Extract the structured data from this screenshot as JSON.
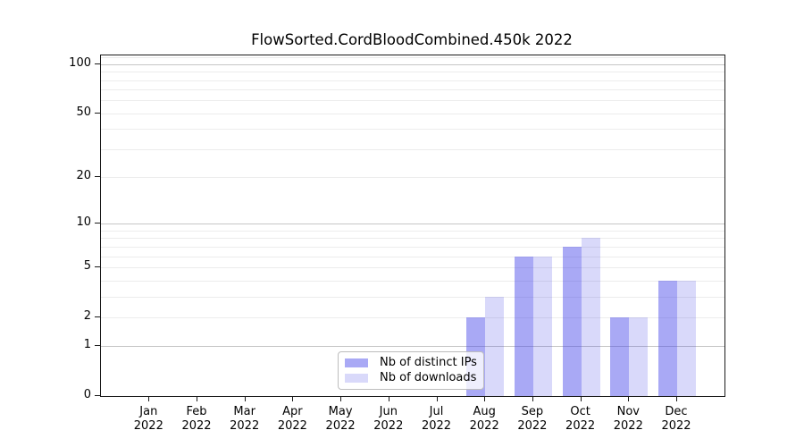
{
  "chart_data": {
    "type": "bar",
    "title": "FlowSorted.CordBloodCombined.450k 2022",
    "categories": [
      {
        "month": "Jan",
        "year": "2022"
      },
      {
        "month": "Feb",
        "year": "2022"
      },
      {
        "month": "Mar",
        "year": "2022"
      },
      {
        "month": "Apr",
        "year": "2022"
      },
      {
        "month": "May",
        "year": "2022"
      },
      {
        "month": "Jun",
        "year": "2022"
      },
      {
        "month": "Jul",
        "year": "2022"
      },
      {
        "month": "Aug",
        "year": "2022"
      },
      {
        "month": "Sep",
        "year": "2022"
      },
      {
        "month": "Oct",
        "year": "2022"
      },
      {
        "month": "Nov",
        "year": "2022"
      },
      {
        "month": "Dec",
        "year": "2022"
      }
    ],
    "series": [
      {
        "name": "Nb of distinct IPs",
        "color": "rgba(64,64,232,0.45)",
        "values": [
          0,
          0,
          0,
          0,
          0,
          0,
          0,
          2,
          6,
          7,
          2,
          4
        ]
      },
      {
        "name": "Nb of downloads",
        "color": "rgba(64,64,232,0.20)",
        "values": [
          0,
          0,
          0,
          0,
          0,
          0,
          0,
          3,
          6,
          8,
          2,
          4
        ]
      }
    ],
    "yscale": "log1p",
    "ylim": [
      0,
      113
    ],
    "yticks": [
      0,
      1,
      2,
      5,
      10,
      20,
      50,
      100
    ],
    "major_gridlines": [
      1,
      10,
      100
    ],
    "minor_gridlines": [
      2,
      3,
      4,
      5,
      6,
      7,
      8,
      9,
      20,
      30,
      40,
      50,
      60,
      70,
      80,
      90,
      110
    ],
    "grid": true,
    "legend_position": "lower center inside",
    "bar_base_color": "#4040e8",
    "frame_color": "#1a1a1a"
  }
}
